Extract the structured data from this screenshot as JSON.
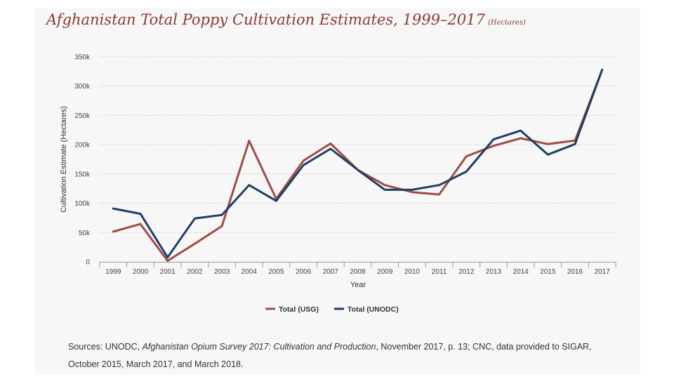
{
  "title": "Afghanistan Total Poppy Cultivation Estimates, 1999–2017",
  "title_unit": "(Hectares)",
  "source": {
    "prefix": "Sources: UNODC, ",
    "italic": "Afghanistan Opium Survey 2017: Cultivation and Production",
    "suffix": ", November 2017, p. 13; CNC, data provided to SIGAR, October 2015, March 2017, and March 2018."
  },
  "chart_data": {
    "type": "line",
    "title": "Afghanistan Total Poppy Cultivation Estimates, 1999–2017",
    "xlabel": "Year",
    "ylabel": "Cultivation Estimate (Hectares)",
    "ylim": [
      0,
      350000
    ],
    "yticks": [
      0,
      50000,
      100000,
      150000,
      200000,
      250000,
      300000,
      350000
    ],
    "ytick_labels": [
      "0",
      "50k",
      "100k",
      "150k",
      "200k",
      "250k",
      "300k",
      "350k"
    ],
    "grid": "horizontal-dotted",
    "legend_position": "bottom-center",
    "categories": [
      "1999",
      "2000",
      "2001",
      "2002",
      "2003",
      "2004",
      "2005",
      "2006",
      "2007",
      "2008",
      "2009",
      "2010",
      "2011",
      "2012",
      "2013",
      "2014",
      "2015",
      "2016",
      "2017"
    ],
    "series": [
      {
        "name": "Total (USG)",
        "color": "#a04c44",
        "values": [
          51500,
          64500,
          1700,
          30750,
          61000,
          206700,
          107400,
          172600,
          202000,
          157000,
          131000,
          119000,
          115000,
          180000,
          198000,
          211000,
          201000,
          207000,
          328000
        ]
      },
      {
        "name": "Total (UNODC)",
        "color": "#1f3f66",
        "values": [
          91000,
          82000,
          7600,
          74000,
          80000,
          131000,
          104000,
          165000,
          193000,
          157000,
          123000,
          123000,
          131000,
          154000,
          209000,
          224000,
          183000,
          201000,
          328000
        ]
      }
    ]
  }
}
